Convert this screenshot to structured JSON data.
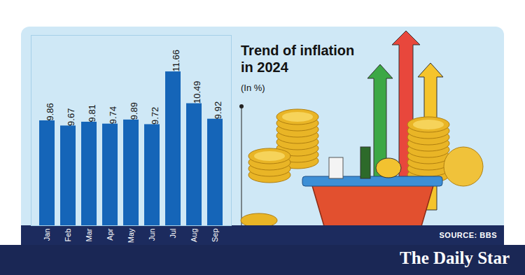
{
  "chart_data": {
    "type": "bar",
    "title": "Trend of inflation in 2024",
    "subtitle": "(In %)",
    "source": "SOURCE: BBS",
    "credit": "The Daily Star",
    "categories": [
      "Jan",
      "Feb",
      "Mar",
      "Apr",
      "May",
      "Jun",
      "Jul",
      "Aug",
      "Sep"
    ],
    "values": [
      9.86,
      9.67,
      9.81,
      9.74,
      9.89,
      9.72,
      11.66,
      10.49,
      9.92
    ],
    "color": "#1565b8",
    "ylim": [
      6,
      13
    ],
    "yticks": [],
    "grid": false,
    "data_labels": true,
    "tick_labels": "x"
  }
}
